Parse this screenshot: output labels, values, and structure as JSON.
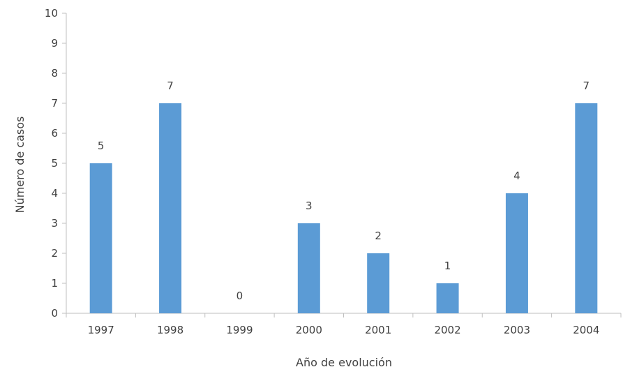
{
  "chart_data": {
    "type": "bar",
    "categories": [
      "1997",
      "1998",
      "1999",
      "2000",
      "2001",
      "2002",
      "2003",
      "2004"
    ],
    "values": [
      5,
      7,
      0,
      3,
      2,
      1,
      4,
      7
    ],
    "data_labels": [
      "5",
      "7",
      "0",
      "3",
      "2",
      "1",
      "4",
      "7"
    ],
    "xlabel": "Año de evolución",
    "ylabel": "Número de casos",
    "ylim": [
      0,
      10
    ],
    "yticks": [
      0,
      1,
      2,
      3,
      4,
      5,
      6,
      7,
      8,
      9,
      10
    ],
    "grid": false,
    "legend": "none",
    "bar_color": "#5b9bd5"
  }
}
